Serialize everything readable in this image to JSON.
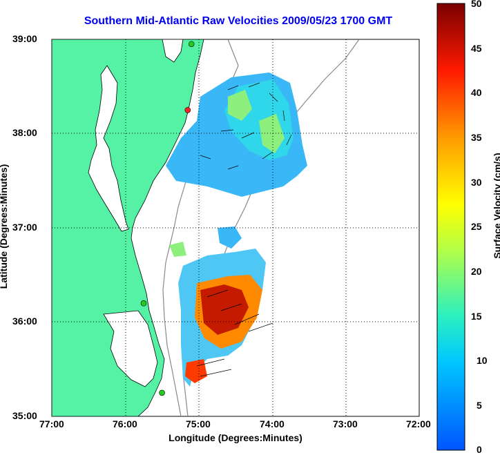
{
  "title": "Southern Mid-Atlantic Raw Velocities 2009/05/23 1700 GMT",
  "axes": {
    "xlabel": "Longitude (Degrees:Minutes)",
    "ylabel": "Latitude (Degrees:Minutes)",
    "xticks": [
      "77:00",
      "76:00",
      "75:00",
      "74:00",
      "73:00",
      "72:00"
    ],
    "yticks": [
      "39:00",
      "38:00",
      "37:00",
      "36:00",
      "35:00"
    ]
  },
  "colorbar": {
    "label": "Surface Velocity (cm/s)",
    "ticks": [
      "50",
      "45",
      "40",
      "35",
      "30",
      "25",
      "20",
      "15",
      "10",
      "5",
      "0"
    ]
  },
  "colors": {
    "land": "#55f2a6",
    "water": "#ffffff",
    "title": "#0000ee",
    "station": "#22cc22",
    "station_alt": "#ff2222"
  },
  "stations": [
    {
      "lon": -75.1,
      "lat": 38.95,
      "color": "green"
    },
    {
      "lon": -75.15,
      "lat": 38.25,
      "color": "red"
    },
    {
      "lon": -75.75,
      "lat": 36.2,
      "color": "green"
    },
    {
      "lon": -75.5,
      "lat": 35.25,
      "color": "green"
    }
  ]
}
